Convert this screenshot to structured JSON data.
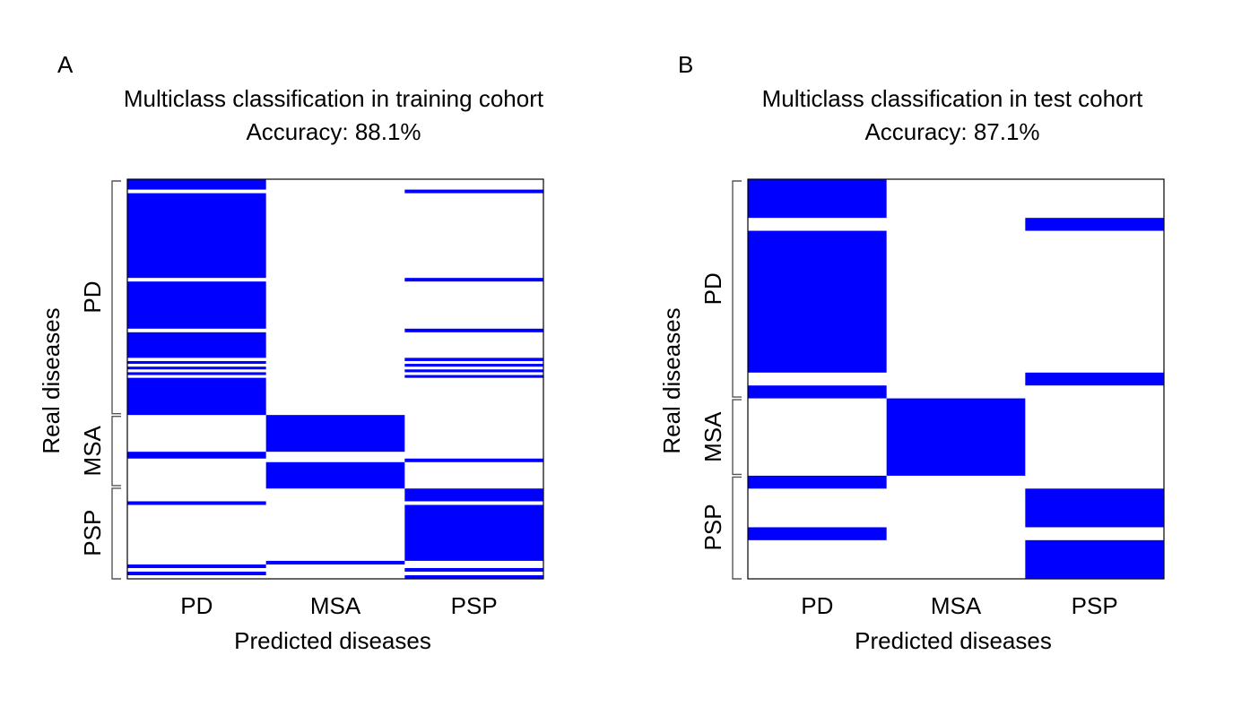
{
  "colors": {
    "predicted": "#0000ff",
    "background": "#ffffff",
    "frame": "#000000",
    "bracket": "#555555"
  },
  "chart_data": [
    {
      "type": "heatmap",
      "panel": "A",
      "title": "Multiclass classification in training cohort",
      "subtitle": "Accuracy: 88.1%",
      "xlabel": "Predicted diseases",
      "ylabel": "Real diseases",
      "x_categories": [
        "PD",
        "MSA",
        "PSP"
      ],
      "y_groups": [
        {
          "label": "PD",
          "rows": [
            0,
            59
          ]
        },
        {
          "label": "MSA",
          "rows": [
            59,
            77
          ]
        },
        {
          "label": "PSP",
          "rows": [
            77,
            100
          ]
        }
      ],
      "total_rows": 100,
      "runs": [
        {
          "class": 0,
          "start": 0,
          "end": 2.6
        },
        {
          "class": 2,
          "start": 2.6,
          "end": 3.5
        },
        {
          "class": 0,
          "start": 3.5,
          "end": 24.7
        },
        {
          "class": 2,
          "start": 24.7,
          "end": 25.6
        },
        {
          "class": 0,
          "start": 25.6,
          "end": 37.4
        },
        {
          "class": 2,
          "start": 37.4,
          "end": 38.3
        },
        {
          "class": 0,
          "start": 38.3,
          "end": 44.7
        },
        {
          "class": 2,
          "start": 44.7,
          "end": 45.5
        },
        {
          "class": 0,
          "start": 45.5,
          "end": 46.2
        },
        {
          "class": 2,
          "start": 46.2,
          "end": 46.9
        },
        {
          "class": 0,
          "start": 46.9,
          "end": 47.6
        },
        {
          "class": 2,
          "start": 47.6,
          "end": 48.3
        },
        {
          "class": 0,
          "start": 48.3,
          "end": 49.0
        },
        {
          "class": 2,
          "start": 49.0,
          "end": 49.7
        },
        {
          "class": 0,
          "start": 49.7,
          "end": 59.0
        },
        {
          "class": 1,
          "start": 59.0,
          "end": 68.2
        },
        {
          "class": 0,
          "start": 68.2,
          "end": 69.9
        },
        {
          "class": 2,
          "start": 69.9,
          "end": 70.8
        },
        {
          "class": 1,
          "start": 70.8,
          "end": 77.4
        },
        {
          "class": 2,
          "start": 77.4,
          "end": 80.6
        },
        {
          "class": 0,
          "start": 80.6,
          "end": 81.5
        },
        {
          "class": 2,
          "start": 81.5,
          "end": 95.5
        },
        {
          "class": 1,
          "start": 95.5,
          "end": 96.4
        },
        {
          "class": 0,
          "start": 96.4,
          "end": 97.3
        },
        {
          "class": 2,
          "start": 97.3,
          "end": 98.2
        },
        {
          "class": 0,
          "start": 98.2,
          "end": 99.1
        },
        {
          "class": 2,
          "start": 99.1,
          "end": 100
        }
      ]
    },
    {
      "type": "heatmap",
      "panel": "B",
      "title": "Multiclass classification in test cohort",
      "subtitle": "Accuracy: 87.1%",
      "xlabel": "Predicted diseases",
      "ylabel": "Real diseases",
      "x_categories": [
        "PD",
        "MSA",
        "PSP"
      ],
      "y_groups": [
        {
          "label": "PD",
          "rows": [
            0,
            17
          ]
        },
        {
          "label": "MSA",
          "rows": [
            17,
            23
          ]
        },
        {
          "label": "PSP",
          "rows": [
            23,
            31
          ]
        }
      ],
      "total_rows": 31,
      "runs": [
        {
          "class": 0,
          "start": 0,
          "end": 3
        },
        {
          "class": 2,
          "start": 3,
          "end": 4
        },
        {
          "class": 0,
          "start": 4,
          "end": 15
        },
        {
          "class": 2,
          "start": 15,
          "end": 16
        },
        {
          "class": 0,
          "start": 16,
          "end": 17
        },
        {
          "class": 1,
          "start": 17,
          "end": 23
        },
        {
          "class": 0,
          "start": 23,
          "end": 24
        },
        {
          "class": 2,
          "start": 24,
          "end": 27
        },
        {
          "class": 0,
          "start": 27,
          "end": 28
        },
        {
          "class": 2,
          "start": 28,
          "end": 31
        }
      ]
    }
  ]
}
